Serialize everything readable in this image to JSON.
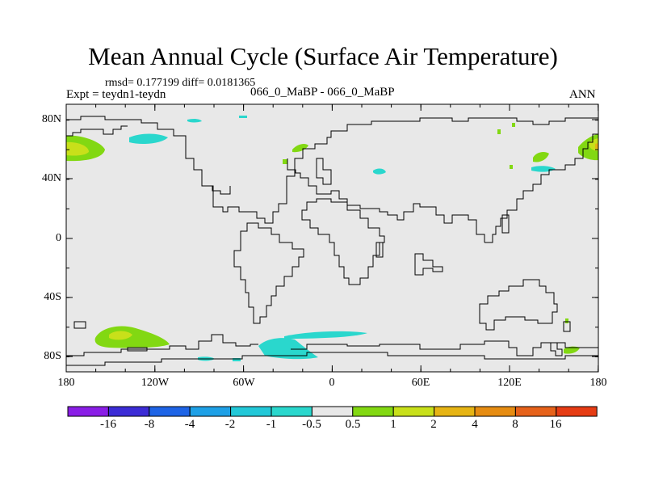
{
  "title": "Mean Annual Cycle (Surface Air Temperature)",
  "stats": "rmsd= 0.177199 diff= 0.0181365",
  "expt_label": "Expt = teydn1-teydn",
  "center_label": "066_0_MaBP - 066_0_MaBP",
  "season": "ANN",
  "map": {
    "latitude_labels": [
      "80N",
      "40N",
      "0",
      "40S",
      "80S"
    ],
    "longitude_labels": [
      "180",
      "120W",
      "60W",
      "0",
      "60E",
      "120E",
      "180"
    ],
    "background_color": "#e8e8e8"
  },
  "colorbar": {
    "labels": [
      "-16",
      "-8",
      "-4",
      "-2",
      "-1",
      "-0.5",
      "0.5",
      "1",
      "2",
      "4",
      "8",
      "16"
    ],
    "colors": [
      "#8a1ee6",
      "#3c2cd6",
      "#1e64e6",
      "#1ea0e6",
      "#22c8d8",
      "#2ad7cd",
      "#e8e8e8",
      "#82d812",
      "#c8e01a",
      "#e6b414",
      "#e68c12",
      "#e6621a",
      "#e63c14"
    ]
  }
}
